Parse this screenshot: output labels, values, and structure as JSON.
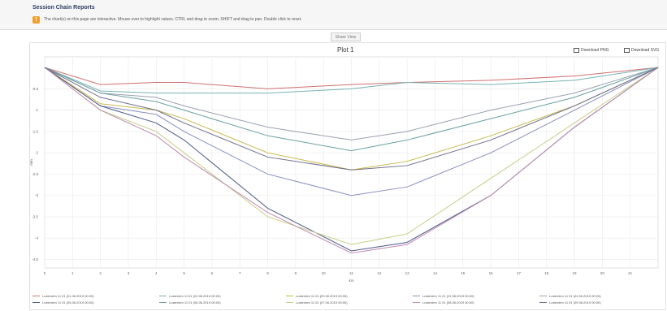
{
  "header": {
    "title": "Session Chain Reports",
    "notice": "The chart(s) on this page are interactive. Mouse over to highlight values. CTRL and drag to zoom, SHIFT and drag to pan. Double click to reset."
  },
  "toolbar": {
    "share_view_label": "Share View"
  },
  "plot": {
    "title": "Plot 1",
    "export_png_label": "Download PNG",
    "export_svg_label": "Download SVG"
  },
  "colors": {
    "accent": "#f0a030",
    "header_title": "#2a3f63"
  },
  "chart_data": {
    "type": "line",
    "title": "Plot 1",
    "xlabel": "km",
    "ylabel": "mm",
    "x": [
      0,
      2,
      4,
      5,
      8,
      11,
      13,
      16,
      19,
      22
    ],
    "xlim": [
      0,
      22
    ],
    "ylim": [
      -4.7,
      0.25
    ],
    "x_ticks": [
      0,
      1,
      2,
      3,
      4,
      5,
      6,
      7,
      8,
      9,
      10,
      11,
      12,
      13,
      14,
      15,
      16,
      17,
      18,
      19,
      20,
      21
    ],
    "y_ticks": [
      -0.5,
      -1,
      -1.5,
      -2,
      -2.5,
      -3,
      -3.5,
      -4,
      -4.5
    ],
    "grid": true,
    "legend_position": "bottom",
    "series": [
      {
        "name": "Lusterden 11 01 (01.06.2019 00:00)",
        "color": "#d07070",
        "values": [
          0,
          -0.4,
          -0.35,
          -0.35,
          -0.5,
          -0.4,
          -0.35,
          -0.3,
          -0.2,
          0
        ]
      },
      {
        "name": "Lusterden 11 01 (02.06.2019 00:00)",
        "color": "#7ab3b3",
        "values": [
          0,
          -0.55,
          -0.6,
          -0.6,
          -0.6,
          -0.5,
          -0.35,
          -0.4,
          -0.3,
          0
        ]
      },
      {
        "name": "Lusterden 11 01 (03.06.2019 00:00)",
        "color": "#c9b84a",
        "values": [
          0,
          -0.85,
          -1.0,
          -1.2,
          -2.0,
          -2.4,
          -2.2,
          -1.6,
          -0.9,
          0
        ]
      },
      {
        "name": "Lusterden 11 01 (01.06.2019 00:00)",
        "color": "#8a8fc0",
        "values": [
          0,
          -0.9,
          -1.1,
          -1.5,
          -2.5,
          -3.0,
          -2.8,
          -2.0,
          -1.0,
          0
        ]
      },
      {
        "name": "Lusterden 11 01 (04.06.2019 00:00)",
        "color": "#9aa0b0",
        "values": [
          0,
          -0.6,
          -0.7,
          -0.9,
          -1.4,
          -1.7,
          -1.5,
          -1.0,
          -0.6,
          0
        ]
      },
      {
        "name": "Lusterden 11 01 (05.06.2019 00:00)",
        "color": "#4b5a8a",
        "values": [
          0,
          -0.9,
          -1.3,
          -1.7,
          -3.3,
          -4.3,
          -4.1,
          -3.0,
          -1.4,
          0
        ]
      },
      {
        "name": "Lusterden 11 01 (06.06.2019 00:00)",
        "color": "#6aa0a0",
        "values": [
          0,
          -0.6,
          -0.8,
          -1.0,
          -1.6,
          -1.95,
          -1.7,
          -1.2,
          -0.7,
          0
        ]
      },
      {
        "name": "Lusterden 11 01 (07.06.2019 00:00)",
        "color": "#c6cf8a",
        "values": [
          0,
          -1.0,
          -1.5,
          -2.0,
          -3.5,
          -4.15,
          -3.9,
          -2.6,
          -1.3,
          0
        ]
      },
      {
        "name": "Lusterden 11 01 (08.06.2019 00:00)",
        "color": "#c08ab0",
        "values": [
          0,
          -1.0,
          -1.6,
          -2.1,
          -3.4,
          -4.35,
          -4.15,
          -3.0,
          -1.4,
          0
        ]
      },
      {
        "name": "Lusterden 11 01 (09.06.2019 00:00)",
        "color": "#6e6e8e",
        "values": [
          0,
          -0.7,
          -1.0,
          -1.3,
          -2.1,
          -2.4,
          -2.3,
          -1.7,
          -0.9,
          0
        ]
      }
    ]
  }
}
